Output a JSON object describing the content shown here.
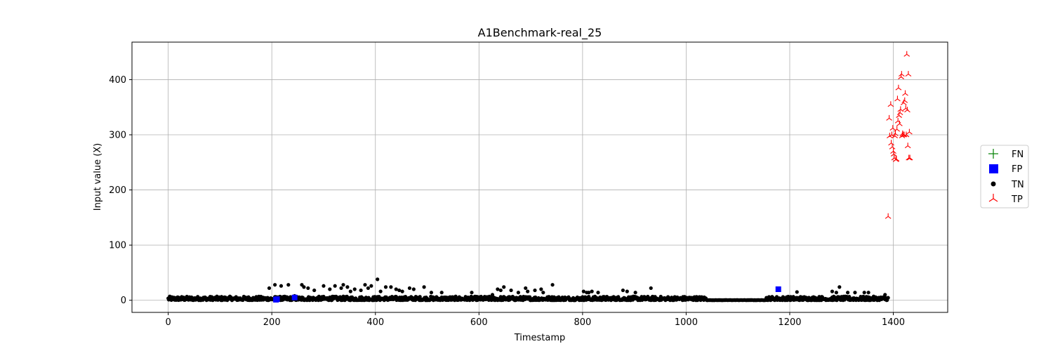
{
  "chart_data": {
    "type": "scatter",
    "title": "A1Benchmark-real_25",
    "xlabel": "Timestamp",
    "ylabel": "Input value (X)",
    "xlim": [
      -70,
      1505
    ],
    "ylim": [
      -22,
      468
    ],
    "xticks": [
      0,
      200,
      400,
      600,
      800,
      1000,
      1200,
      1400
    ],
    "yticks": [
      0,
      100,
      200,
      300,
      400
    ],
    "grid": true,
    "legend_position": "right",
    "legend": [
      "FN",
      "FP",
      "TN",
      "TP"
    ],
    "colors": {
      "FN": "#008000",
      "FP": "#0000ff",
      "TN": "#000000",
      "TP": "#ff0000",
      "grid": "#b0b0b0"
    },
    "series": [
      {
        "name": "FN",
        "marker": "plus",
        "x": [],
        "y": []
      },
      {
        "name": "FP",
        "marker": "square",
        "x": [
          208,
          210,
          244,
          1178
        ],
        "y": [
          1,
          2,
          5,
          20
        ]
      },
      {
        "name": "TN",
        "marker": "circle",
        "baseline": {
          "x_start": 0,
          "x_end": 1390,
          "note": "dense band of values between 0 and 8"
        },
        "x": [
          195,
          206,
          218,
          232,
          244,
          258,
          262,
          270,
          282,
          300,
          312,
          322,
          334,
          338,
          346,
          352,
          360,
          372,
          380,
          386,
          392,
          404,
          410,
          420,
          430,
          440,
          446,
          452,
          466,
          474,
          494,
          508,
          528,
          586,
          626,
          636,
          642,
          648,
          662,
          676,
          690,
          694,
          708,
          720,
          724,
          742,
          802,
          808,
          812,
          818,
          830,
          878,
          886,
          902,
          932,
          1214,
          1282,
          1290,
          1296,
          1312,
          1326,
          1344,
          1352,
          1384
        ],
        "y": [
          22,
          28,
          26,
          28,
          8,
          28,
          24,
          22,
          18,
          26,
          20,
          26,
          22,
          28,
          24,
          16,
          20,
          18,
          28,
          22,
          26,
          38,
          16,
          24,
          24,
          20,
          18,
          16,
          22,
          20,
          24,
          14,
          14,
          14,
          10,
          20,
          18,
          24,
          18,
          14,
          22,
          16,
          18,
          20,
          14,
          28,
          16,
          14,
          14,
          16,
          14,
          18,
          16,
          14,
          22,
          15,
          16,
          14,
          24,
          14,
          14,
          14,
          14,
          10
        ]
      },
      {
        "name": "TP",
        "marker": "tri_up",
        "x": [
          1390,
          1392,
          1393,
          1395,
          1396,
          1397,
          1398,
          1399,
          1400,
          1401,
          1402,
          1403,
          1404,
          1405,
          1406,
          1407,
          1408,
          1409,
          1410,
          1411,
          1412,
          1413,
          1414,
          1415,
          1416,
          1417,
          1418,
          1419,
          1420,
          1421,
          1422,
          1423,
          1424,
          1425,
          1426,
          1427,
          1428,
          1429,
          1430,
          1431,
          1432
        ],
        "y": [
          152,
          330,
          298,
          355,
          285,
          300,
          278,
          312,
          270,
          265,
          258,
          298,
          302,
          255,
          256,
          310,
          365,
          325,
          385,
          335,
          320,
          340,
          346,
          405,
          410,
          298,
          302,
          300,
          358,
          300,
          362,
          375,
          348,
          300,
          446,
          345,
          280,
          410,
          258,
          305,
          258
        ]
      }
    ]
  }
}
